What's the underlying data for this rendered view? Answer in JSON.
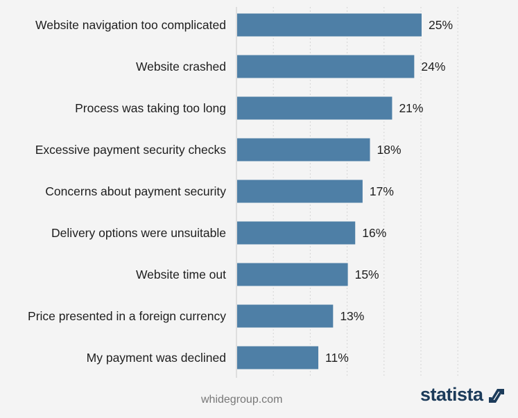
{
  "chart_data": {
    "type": "bar",
    "orientation": "horizontal",
    "categories": [
      "Website navigation too complicated",
      "Website crashed",
      "Process was taking too long",
      "Excessive payment security checks",
      "Concerns about payment security",
      "Delivery options were unsuitable",
      "Website time out",
      "Price presented in a foreign currency",
      "My payment was declined"
    ],
    "values": [
      25,
      24,
      21,
      18,
      17,
      16,
      15,
      13,
      11
    ],
    "value_labels": [
      "25%",
      "24%",
      "21%",
      "18%",
      "17%",
      "16%",
      "15%",
      "13%",
      "11%"
    ],
    "xlim": [
      0,
      30
    ],
    "grid": true,
    "bar_color": "#4e7fa6"
  },
  "source": "whidegroup.com",
  "brand": "statista",
  "brand_color": "#1c3b5a"
}
